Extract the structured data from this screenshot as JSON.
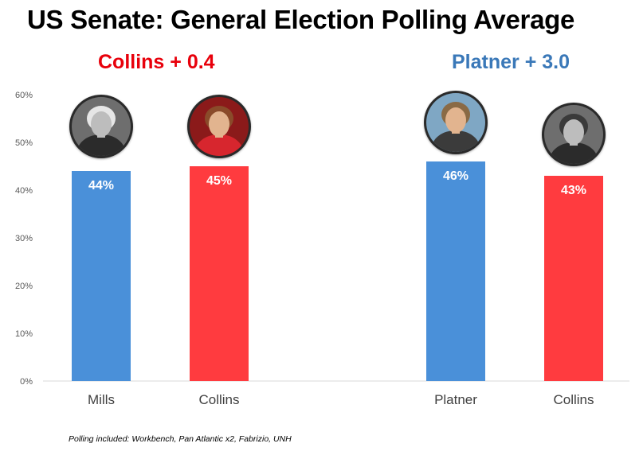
{
  "title": "US Senate: General Election Polling Average",
  "matchups": [
    {
      "margin_label": "Collins + 0.4",
      "color": "#e8000b"
    },
    {
      "margin_label": "Platner + 3.0",
      "color": "#3a78b8"
    }
  ],
  "footnote": "Polling included: Workbench, Pan Atlantic x2, Fabrizio, UNH",
  "chart_data": {
    "type": "bar",
    "title": "US Senate: General Election Polling Average",
    "xlabel": "",
    "ylabel": "",
    "ylim": [
      0,
      60
    ],
    "yticks": [
      0,
      10,
      20,
      30,
      40,
      50,
      60
    ],
    "ytick_labels": [
      "0%",
      "10%",
      "20%",
      "30%",
      "40%",
      "50%",
      "60%"
    ],
    "grid": false,
    "categories": [
      "Mills",
      "Collins",
      "Platner",
      "Collins"
    ],
    "values": [
      44,
      45,
      46,
      43
    ],
    "data_labels": [
      "44%",
      "45%",
      "46%",
      "43%"
    ],
    "bar_colors": [
      "#4a90d9",
      "#ff3b3f",
      "#4a90d9",
      "#ff3b3f"
    ],
    "photo_style": [
      "grayscale",
      "color",
      "color",
      "grayscale"
    ]
  }
}
